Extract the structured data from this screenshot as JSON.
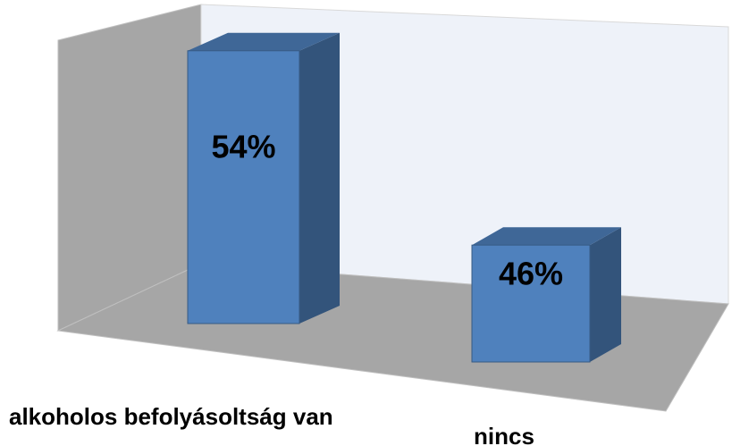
{
  "chart_data": {
    "type": "bar",
    "categories": [
      "alkoholos befolyásoltság van",
      "nincs"
    ],
    "values": [
      54,
      46
    ],
    "value_labels": [
      "54%",
      "46%"
    ],
    "color": "#4f81bd",
    "ylim": [
      40,
      60
    ]
  }
}
